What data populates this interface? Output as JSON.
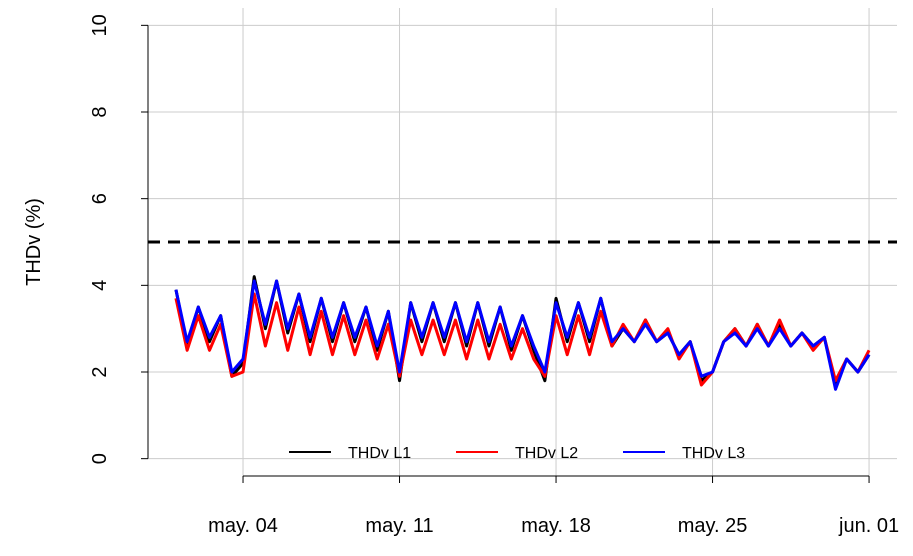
{
  "chart_data": {
    "type": "line",
    "y_label": "THDv (%)",
    "x": [
      1,
      1.5,
      2,
      2.5,
      3,
      3.5,
      4,
      4.5,
      5,
      5.5,
      6,
      6.5,
      7,
      7.5,
      8,
      8.5,
      9,
      9.5,
      10,
      10.5,
      11,
      11.5,
      12,
      12.5,
      13,
      13.5,
      14,
      14.5,
      15,
      15.5,
      16,
      16.5,
      17,
      17.5,
      18,
      18.5,
      19,
      19.5,
      20,
      20.5,
      21,
      21.5,
      22,
      22.5,
      23,
      23.5,
      24,
      24.5,
      25,
      25.5,
      26,
      26.5,
      27,
      27.5,
      28,
      28.5,
      29,
      29.5,
      30,
      30.5,
      31,
      31.5,
      32
    ],
    "series": [
      {
        "name": "THDv L1",
        "color": "#000000",
        "values": [
          3.9,
          2.6,
          3.5,
          2.7,
          3.3,
          1.9,
          2.2,
          4.2,
          3.0,
          4.1,
          2.9,
          3.8,
          2.7,
          3.7,
          2.7,
          3.6,
          2.7,
          3.5,
          2.5,
          3.4,
          1.8,
          3.6,
          2.7,
          3.6,
          2.7,
          3.6,
          2.6,
          3.6,
          2.6,
          3.5,
          2.5,
          3.3,
          2.5,
          1.8,
          3.7,
          2.7,
          3.6,
          2.7,
          3.7,
          2.6,
          3.0,
          2.7,
          3.2,
          2.7,
          2.9,
          2.4,
          2.7,
          1.8,
          2.0,
          2.7,
          3.0,
          2.6,
          3.1,
          2.6,
          3.1,
          2.6,
          2.9,
          2.6,
          2.8,
          1.7,
          2.3,
          2.0,
          2.4
        ]
      },
      {
        "name": "THDv L2",
        "color": "#ff0000",
        "values": [
          3.7,
          2.5,
          3.3,
          2.5,
          3.1,
          1.9,
          2.0,
          3.8,
          2.6,
          3.6,
          2.5,
          3.5,
          2.4,
          3.4,
          2.4,
          3.3,
          2.4,
          3.2,
          2.3,
          3.1,
          1.9,
          3.2,
          2.4,
          3.2,
          2.4,
          3.2,
          2.3,
          3.2,
          2.3,
          3.1,
          2.3,
          3.0,
          2.3,
          1.9,
          3.3,
          2.4,
          3.3,
          2.4,
          3.4,
          2.6,
          3.1,
          2.7,
          3.2,
          2.7,
          3.0,
          2.3,
          2.7,
          1.7,
          2.0,
          2.7,
          3.0,
          2.6,
          3.1,
          2.6,
          3.2,
          2.6,
          2.9,
          2.5,
          2.8,
          1.8,
          2.3,
          2.0,
          2.5
        ]
      },
      {
        "name": "THDv L3",
        "color": "#0000ff",
        "values": [
          3.9,
          2.7,
          3.5,
          2.8,
          3.3,
          2.0,
          2.3,
          4.1,
          3.1,
          4.1,
          3.0,
          3.8,
          2.8,
          3.7,
          2.8,
          3.6,
          2.8,
          3.5,
          2.6,
          3.4,
          2.0,
          3.6,
          2.8,
          3.6,
          2.8,
          3.6,
          2.7,
          3.6,
          2.7,
          3.5,
          2.6,
          3.3,
          2.6,
          2.0,
          3.6,
          2.8,
          3.6,
          2.8,
          3.7,
          2.7,
          3.0,
          2.7,
          3.1,
          2.7,
          2.9,
          2.4,
          2.7,
          1.9,
          2.0,
          2.7,
          2.9,
          2.6,
          3.0,
          2.6,
          3.0,
          2.6,
          2.9,
          2.6,
          2.8,
          1.6,
          2.3,
          2.0,
          2.4
        ]
      }
    ],
    "xlim": [
      -0.25,
      33.25
    ],
    "xticks": [
      {
        "value": 4,
        "label": "may. 04"
      },
      {
        "value": 11,
        "label": "may. 11"
      },
      {
        "value": 18,
        "label": "may. 18"
      },
      {
        "value": 25,
        "label": "may. 25"
      },
      {
        "value": 32,
        "label": "jun. 01"
      }
    ],
    "ylim": [
      -0.4,
      10.4
    ],
    "yticks": [
      0,
      2,
      4,
      6,
      8,
      10
    ],
    "hline": 5,
    "grid": true,
    "legend": "bottom"
  }
}
